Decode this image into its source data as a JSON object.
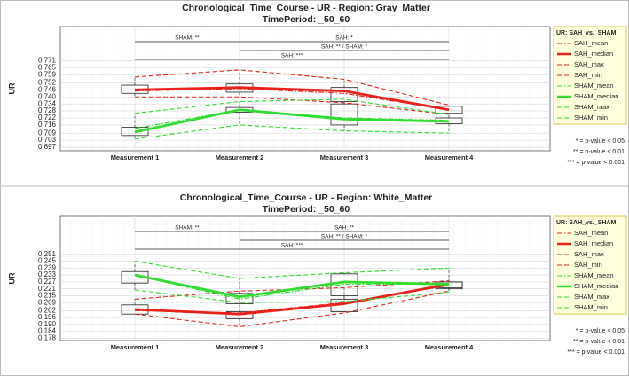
{
  "chart_data": [
    {
      "type": "box",
      "title": "Chronological_Time_Course - UR - Region: Gray_Matter",
      "subtitle": "TimePeriod: _50_60",
      "ylabel": "UR",
      "categories": [
        "Measurement 1",
        "Measurement 2",
        "Measurement 3",
        "Measurement 4"
      ],
      "ylim": [
        0.694,
        0.8
      ],
      "yticks": [
        0.697,
        0.703,
        0.709,
        0.716,
        0.722,
        0.728,
        0.734,
        {
          "value": 0.74,
          "label": "0.740"
        },
        0.746,
        0.752,
        0.759,
        0.765,
        0.771
      ],
      "grid": true,
      "legend_title": "UR: SAH_vs._SHAM",
      "series": [
        {
          "name": "SAH_mean",
          "color": "#e8221b",
          "dash": "dashdot",
          "values": [
            0.745,
            0.747,
            0.743,
            0.729
          ]
        },
        {
          "name": "SAH_median",
          "color": "#e8221b",
          "dash": "solid",
          "values": [
            0.746,
            0.748,
            0.745,
            0.729
          ]
        },
        {
          "name": "SAH_max",
          "color": "#e8221b",
          "dash": "dashed",
          "values": [
            0.757,
            0.763,
            0.755,
            0.733
          ]
        },
        {
          "name": "SAH_min",
          "color": "#e8221b",
          "dash": "dashed",
          "values": [
            0.74,
            0.74,
            0.735,
            0.725
          ]
        },
        {
          "name": "SHAM_mean",
          "color": "#2ede2e",
          "dash": "dashdot",
          "values": [
            0.713,
            0.729,
            0.722,
            0.72
          ]
        },
        {
          "name": "SHAM_median",
          "color": "#2ede2e",
          "dash": "solid",
          "values": [
            0.71,
            0.729,
            0.721,
            0.719
          ]
        },
        {
          "name": "SHAM_max",
          "color": "#2ede2e",
          "dash": "dashed",
          "values": [
            0.726,
            0.736,
            0.738,
            0.725
          ]
        },
        {
          "name": "SHAM_min",
          "color": "#2ede2e",
          "dash": "dashed",
          "values": [
            0.704,
            0.716,
            0.711,
            0.709
          ]
        }
      ],
      "boxes": [
        {
          "q1": [
            0.743,
            0.744,
            0.736,
            0.726
          ],
          "q3": [
            0.75,
            0.751,
            0.748,
            0.732
          ]
        },
        {
          "q1": [
            0.707,
            0.727,
            0.716,
            0.717
          ],
          "q3": [
            0.714,
            0.731,
            0.734,
            0.722
          ]
        }
      ],
      "annotations": [
        "SHAM: **",
        "SAH: *",
        "SAH: ** / SHAM: *",
        "SAH: ***"
      ],
      "notes": [
        "* = p-value < 0.05",
        "** = p-value < 0.01",
        "*** = p-value < 0.001"
      ]
    },
    {
      "type": "box",
      "title": "Chronological_Time_Course - UR - Region: White_Matter",
      "subtitle": "TimePeriod: _50_60",
      "ylabel": "UR",
      "categories": [
        "Measurement 1",
        "Measurement 2",
        "Measurement 3",
        "Measurement 4"
      ],
      "ylim": [
        0.176,
        0.284
      ],
      "yticks": [
        0.178,
        0.184,
        {
          "value": 0.19,
          "label": "0.190"
        },
        0.196,
        0.202,
        0.209,
        0.215,
        0.221,
        0.227,
        0.233,
        0.239,
        0.245,
        0.251
      ],
      "grid": true,
      "legend_title": "UR: SAH_vs._SHAM",
      "series": [
        {
          "name": "SAH_mean",
          "color": "#e8221b",
          "dash": "dashdot",
          "values": [
            0.202,
            0.2,
            0.209,
            0.224
          ]
        },
        {
          "name": "SAH_median",
          "color": "#e8221b",
          "dash": "solid",
          "values": [
            0.203,
            0.199,
            0.208,
            0.225
          ]
        },
        {
          "name": "SAH_max",
          "color": "#e8221b",
          "dash": "dashed",
          "values": [
            0.212,
            0.219,
            0.222,
            0.228
          ]
        },
        {
          "name": "SAH_min",
          "color": "#e8221b",
          "dash": "dashed",
          "values": [
            0.199,
            0.188,
            0.2,
            0.219
          ]
        },
        {
          "name": "SHAM_mean",
          "color": "#2ede2e",
          "dash": "dashdot",
          "values": [
            0.233,
            0.212,
            0.225,
            0.225
          ]
        },
        {
          "name": "SHAM_median",
          "color": "#2ede2e",
          "dash": "solid",
          "values": [
            0.233,
            0.214,
            0.227,
            0.225
          ]
        },
        {
          "name": "SHAM_max",
          "color": "#2ede2e",
          "dash": "dashed",
          "values": [
            0.245,
            0.23,
            0.235,
            0.239
          ]
        },
        {
          "name": "SHAM_min",
          "color": "#2ede2e",
          "dash": "dashed",
          "values": [
            0.22,
            0.209,
            0.21,
            0.218
          ]
        }
      ],
      "boxes": [
        {
          "q1": [
            0.199,
            0.195,
            0.201,
            0.221
          ],
          "q3": [
            0.207,
            0.201,
            0.212,
            0.227
          ]
        },
        {
          "q1": [
            0.226,
            0.208,
            0.215,
            0.222
          ],
          "q3": [
            0.236,
            0.217,
            0.234,
            0.227
          ]
        }
      ],
      "annotations": [
        "SHAM: **",
        "SAH: **",
        "SAH: ** / SHAM: *",
        "SAH: ***"
      ],
      "notes": [
        "* = p-value < 0.05",
        "** = p-value < 0.01",
        "*** = p-value < 0.001"
      ]
    }
  ]
}
